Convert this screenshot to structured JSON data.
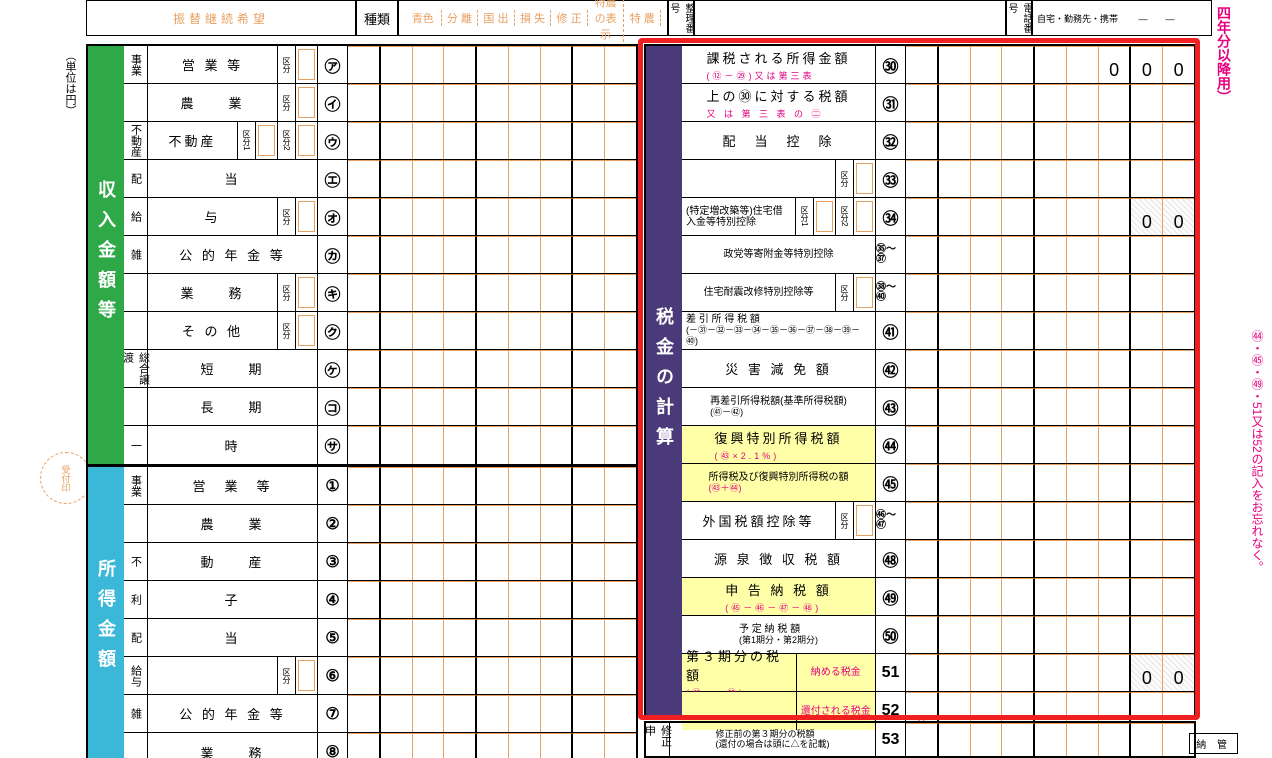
{
  "unit_label": "（単位は円）",
  "top": {
    "transfer": "振替継続希望",
    "shurui": "種類",
    "types": [
      "青色",
      "分 離",
      "国 出",
      "損 失",
      "修 正",
      "特農の表 示",
      "特 農"
    ],
    "seiri": "整理番号",
    "denwa": "電話番号",
    "denwa_val": "自宅・勤務先・携帯\n　　—　　—"
  },
  "left": {
    "green_band": "収入金額等",
    "blue_band": "所得金額",
    "rows_green": [
      {
        "g": "事業",
        "l": "営 業 等",
        "k": "区分",
        "n": "㋐"
      },
      {
        "g": "",
        "l": "農　　業",
        "k": "区分",
        "n": "㋑"
      },
      {
        "g": "不動産",
        "kub": "区分1",
        "kub2": "区分2",
        "n": "㋒"
      },
      {
        "g": "配",
        "l": "当",
        "n": "㋓"
      },
      {
        "g": "給",
        "l": "与",
        "k": "区分",
        "n": "㋔"
      },
      {
        "g": "雑",
        "l": "公 的 年 金 等",
        "n": "㋕"
      },
      {
        "g": "",
        "l": "業　　務",
        "k": "区分",
        "n": "㋖"
      },
      {
        "g": "",
        "l": "そ の 他",
        "k": "区分",
        "n": "㋗"
      },
      {
        "g": "総合譲渡",
        "l": "短　　期",
        "n": "㋘"
      },
      {
        "g": "",
        "l": "長　　期",
        "n": "㋙"
      },
      {
        "g": "一",
        "l": "時",
        "n": "㋚"
      }
    ],
    "rows_blue": [
      {
        "g": "事業",
        "l": "営　業　等",
        "n": "①"
      },
      {
        "g": "",
        "l": "農　　業",
        "n": "②"
      },
      {
        "g": "不",
        "l": "動　　産",
        "n": "③"
      },
      {
        "g": "利",
        "l": "子",
        "n": "④"
      },
      {
        "g": "配",
        "l": "当",
        "n": "⑤"
      },
      {
        "g": "給与",
        "kub": "区分",
        "n": "⑥"
      },
      {
        "g": "雑",
        "l": "公 的 年 金 等",
        "n": "⑦"
      },
      {
        "g": "",
        "l": "業　　務",
        "n": "⑧"
      }
    ]
  },
  "right": {
    "purple_band": "税金の計算",
    "rows": [
      {
        "l": "課税される所得金額",
        "s": "(⑫－㉙)又は第三表",
        "n": "㉚",
        "preset": "000",
        "sred": true
      },
      {
        "l": "上の㉚に対する税額",
        "s": "又 は 第 三 表 の ㊁",
        "n": "㉛",
        "sred": true
      },
      {
        "l": "配　当　控　除",
        "n": "㉜"
      },
      {
        "l": "",
        "k": "区分",
        "n": "㉝"
      },
      {
        "l": "(特定増改築等)住宅借入金等特別控除",
        "small": true,
        "k": "区分1",
        "k2": "区分2",
        "n": "㉞",
        "preset": "00",
        "hatch": true
      },
      {
        "l": "政党等寄附金等特別控除",
        "small": true,
        "n": "㉟～㊲",
        "nsmall": true
      },
      {
        "l": "住宅耐震改修特別控除等",
        "small": true,
        "k": "区分",
        "n": "㊳～㊵",
        "nsmall": true
      },
      {
        "l": "差 引 所 得 税 額",
        "s": "(－㉛－㉜－㉝－㉞－㉟－㊱－㊲－㊳－㊴－㊵)",
        "small": true,
        "n": "㊶"
      },
      {
        "l": "災 害 減 免 額",
        "n": "㊷"
      },
      {
        "l": "再差引所得税額(基準所得税額)",
        "s": "(㊶－㊷)",
        "small": true,
        "n": "㊸"
      },
      {
        "l": "復興特別所得税額",
        "s": "(㊸×2.1%)",
        "n": "㊹",
        "yellow": true,
        "sred": true
      },
      {
        "l": "所得税及び復興特別所得税の額",
        "s": "(㊸＋㊹)",
        "small": true,
        "n": "㊺",
        "yellow": true,
        "sred": true
      },
      {
        "l": "外国税額控除等",
        "k": "区分",
        "n": "㊻～㊼",
        "nsmall": true
      },
      {
        "l": "源 泉 徴 収 税 額",
        "n": "㊽"
      },
      {
        "l": "申 告 納 税 額",
        "s": "(㊺－㊻－㊼－㊽)",
        "n": "㊾",
        "yellow": true,
        "sred": true
      },
      {
        "l": "予 定 納 税 額",
        "s": "(第1期分・第2期分)",
        "small": true,
        "n": "㊿"
      },
      {
        "l": "第３期分の税額",
        "s": "(㊾ － ㊿)",
        "split_top": "納める税金",
        "n": "51",
        "yellow": true,
        "preset": "00",
        "hatch": true,
        "sred": true
      },
      {
        "l": "",
        "split_bot": "還付される税金",
        "n": "52",
        "yellow": true,
        "tri": true
      }
    ],
    "bottom": {
      "l": "修正申告",
      "s": "(還付の場合は頭に△を記載)",
      "n": "53"
    }
  },
  "side_right1": "四年分以降用）",
  "side_right2": "㊹・㊺・㊾・51又は52の記入をお忘れなく。",
  "receipt": "受付印",
  "noukan": "納 管"
}
